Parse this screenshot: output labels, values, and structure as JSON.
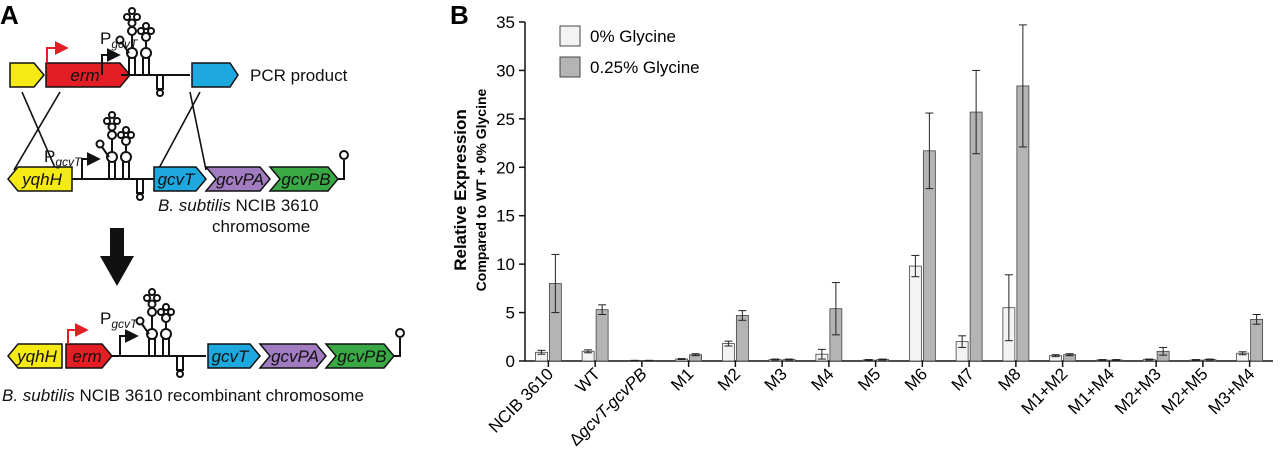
{
  "panel_a": {
    "letter": "A",
    "promoter": {
      "p": "P",
      "sub": "gcvT"
    },
    "pcr_label": "PCR product",
    "genes": {
      "yqhH": "yqhH",
      "erm": "erm",
      "gcvT": "gcvT",
      "gcvPA": "gcvPA",
      "gcvPB": "gcvPB"
    },
    "chromosome": {
      "species": "B. subtilis",
      "line1": "NCIB 3610",
      "line2": "chromosome"
    },
    "recombinant": {
      "species": "B. subtilis",
      "rest": "NCIB 3610 recombinant chromosome"
    },
    "colors": {
      "yellow": "#f5ea14",
      "red": "#e31e24",
      "blue": "#1ea8e0",
      "purple": "#a17cc0",
      "green": "#3aa845",
      "arrow_red": "#e31e24"
    }
  },
  "panel_b": {
    "letter": "B",
    "ylabel_line1": "Relative Expression",
    "ylabel_line2": "Compared to WT + 0% Glycine"
  },
  "chart_data": {
    "type": "bar",
    "categories": [
      "NCIB 3610",
      "WT",
      "ΔgcvT-gcvPB",
      "M1",
      "M2",
      "M3",
      "M4",
      "M5",
      "M6",
      "M7",
      "M8",
      "M1+M2",
      "M1+M4",
      "M2+M3",
      "M2+M5",
      "M3+M4"
    ],
    "series": [
      {
        "name": "0% Glycine",
        "color": "#f3f3f3",
        "values": [
          0.9,
          1.0,
          0.05,
          0.2,
          1.8,
          0.15,
          0.7,
          0.1,
          9.8,
          2.0,
          5.5,
          0.55,
          0.1,
          0.15,
          0.1,
          0.8
        ],
        "errors": [
          0.2,
          0.15,
          0.02,
          0.05,
          0.25,
          0.05,
          0.5,
          0.05,
          1.1,
          0.6,
          3.4,
          0.1,
          0.05,
          0.05,
          0.05,
          0.15
        ]
      },
      {
        "name": "0.25% Glycine",
        "color": "#b4b4b4",
        "values": [
          8.0,
          5.3,
          0.05,
          0.65,
          4.7,
          0.15,
          5.4,
          0.15,
          21.7,
          25.7,
          28.4,
          0.65,
          0.1,
          1.0,
          0.15,
          4.3
        ],
        "errors": [
          3.0,
          0.5,
          0.02,
          0.1,
          0.5,
          0.05,
          2.7,
          0.05,
          3.9,
          4.3,
          6.3,
          0.1,
          0.05,
          0.4,
          0.05,
          0.5
        ]
      }
    ],
    "ylim": [
      0,
      35
    ],
    "yticks": [
      0,
      5,
      10,
      15,
      20,
      25,
      30,
      35
    ],
    "legend": "top-left"
  }
}
